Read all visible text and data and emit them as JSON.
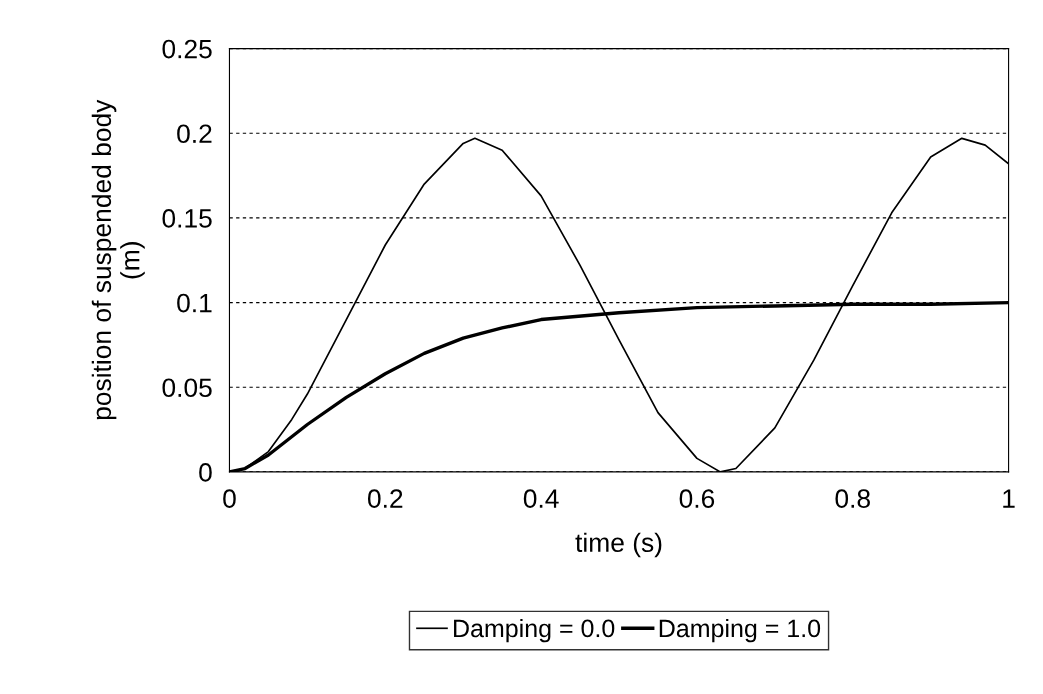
{
  "chart_data": {
    "type": "line",
    "xlabel": "time (s)",
    "ylabel": "position of suspended body\n(m)",
    "xlim": [
      0,
      1
    ],
    "xticks": [
      0,
      0.2,
      0.4,
      0.6,
      0.8,
      1
    ],
    "ylim": [
      0,
      0.25
    ],
    "yticks": [
      0,
      0.05,
      0.1,
      0.15,
      0.2,
      0.25
    ],
    "grid": "y",
    "legend": "bottom",
    "marker": "none",
    "line_style": "solid",
    "series": [
      {
        "name": "Damping = 0.0",
        "color": "#000000",
        "x": [
          0,
          0.02,
          0.05,
          0.08,
          0.1,
          0.15,
          0.2,
          0.25,
          0.3,
          0.315,
          0.35,
          0.4,
          0.45,
          0.5,
          0.55,
          0.6,
          0.63,
          0.65,
          0.7,
          0.75,
          0.8,
          0.85,
          0.9,
          0.94,
          0.97,
          1.0
        ],
        "values": [
          0,
          0.002,
          0.012,
          0.031,
          0.046,
          0.09,
          0.134,
          0.17,
          0.194,
          0.197,
          0.19,
          0.163,
          0.122,
          0.078,
          0.035,
          0.008,
          0.0,
          0.002,
          0.026,
          0.066,
          0.11,
          0.153,
          0.186,
          0.197,
          0.193,
          0.182
        ]
      },
      {
        "name": "Damping = 1.0",
        "color": "#000000",
        "x": [
          0,
          0.02,
          0.05,
          0.1,
          0.15,
          0.2,
          0.25,
          0.3,
          0.35,
          0.4,
          0.5,
          0.6,
          0.7,
          0.8,
          0.9,
          1.0
        ],
        "values": [
          0,
          0.002,
          0.01,
          0.028,
          0.044,
          0.058,
          0.07,
          0.079,
          0.085,
          0.09,
          0.094,
          0.097,
          0.098,
          0.099,
          0.099,
          0.1
        ]
      }
    ]
  }
}
